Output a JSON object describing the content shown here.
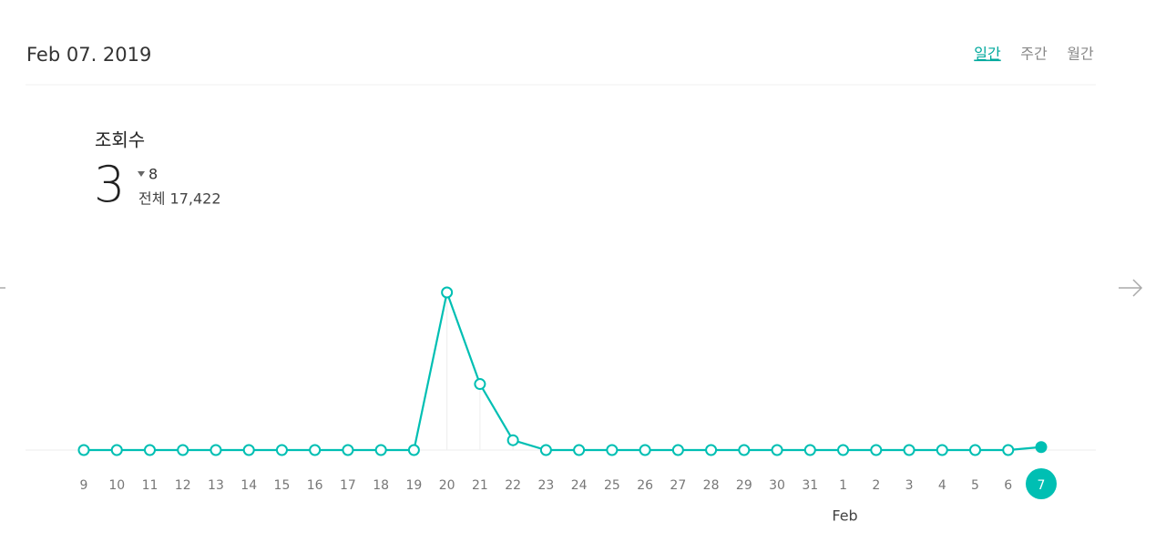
{
  "header": {
    "date": "Feb 07. 2019",
    "tabs": [
      "일간",
      "주간",
      "월간"
    ]
  },
  "stats": {
    "label": "조회수",
    "value": "3",
    "change": "8",
    "total": "전체 17,422"
  },
  "chart_data": {
    "type": "line",
    "color": "#00bfb3",
    "categories": [
      "9",
      "10",
      "11",
      "12",
      "13",
      "14",
      "15",
      "16",
      "17",
      "18",
      "19",
      "20",
      "21",
      "22",
      "23",
      "24",
      "25",
      "26",
      "27",
      "28",
      "29",
      "30",
      "31",
      "1",
      "2",
      "3",
      "4",
      "5",
      "6",
      "7"
    ],
    "values": [
      0,
      0,
      0,
      0,
      0,
      0,
      0,
      0,
      0,
      0,
      0,
      160,
      67,
      10,
      0,
      0,
      0,
      0,
      0,
      0,
      0,
      0,
      0,
      0,
      0,
      0,
      0,
      0,
      0,
      3
    ],
    "month_label": "Feb"
  }
}
